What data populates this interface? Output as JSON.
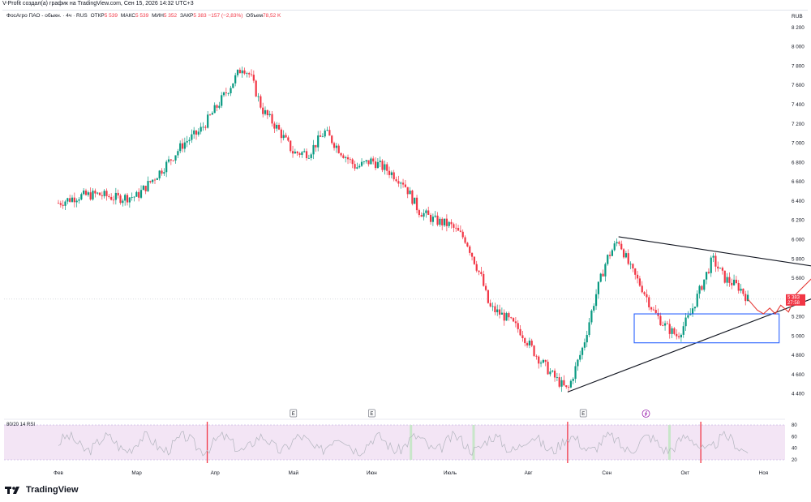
{
  "header": {
    "credit": "V-Profit создал(а) график на TradingView.com, Сен 15, 2026 14:32 UTC+3"
  },
  "legend": {
    "symbol": "ФосАгро ПАО - обыкн. · 4ч · RUS",
    "open_label": "ОТКР",
    "open_value": "5 539",
    "high_label": "МАКС",
    "high_value": "5 539",
    "low_label": "МИН",
    "low_value": "5 352",
    "close_label": "ЗАКР",
    "close_value": "5 383 −157 (−2,83%)",
    "volume_label": "Объем",
    "volume_value": "78,52 K"
  },
  "price_axis": {
    "currency": "RUB",
    "last_price": "5 383",
    "countdown": "27:58"
  },
  "rsi": {
    "label": "80/20 14 RSI"
  },
  "markers": {
    "earnings": "E",
    "lightning_icon": "lightning-icon"
  },
  "footer": {
    "brand": "TradingView"
  },
  "colors": {
    "up": "#089981",
    "down": "#f23645",
    "last_price_bg": "#f23645",
    "rsi_band": "#f3e5f5",
    "rsi_line": "#b2b5be",
    "box": "#2962ff",
    "triangle": "#131722",
    "projection": "#e53935"
  },
  "chart_data": {
    "type": "candlestick",
    "x_labels": [
      "Фев",
      "Мар",
      "Апр",
      "Май",
      "Июн",
      "Июль",
      "Авг",
      "Сен",
      "Окт",
      "Ноя"
    ],
    "y_ticks": [
      4400,
      4600,
      4800,
      5000,
      5200,
      5400,
      5600,
      5800,
      6000,
      6200,
      6400,
      6600,
      6800,
      7000,
      7200,
      7400,
      7600,
      7800,
      8000,
      8200
    ],
    "ylim": [
      4280,
      8300
    ],
    "price_path": [
      [
        0.0,
        6380
      ],
      [
        0.25,
        6450
      ],
      [
        0.5,
        6470
      ],
      [
        0.75,
        6430
      ],
      [
        1.0,
        6450
      ],
      [
        1.2,
        6620
      ],
      [
        1.4,
        6800
      ],
      [
        1.6,
        7000
      ],
      [
        1.8,
        7120
      ],
      [
        2.0,
        7350
      ],
      [
        2.2,
        7600
      ],
      [
        2.35,
        7800
      ],
      [
        2.45,
        7700
      ],
      [
        2.6,
        7350
      ],
      [
        2.8,
        7150
      ],
      [
        3.0,
        6900
      ],
      [
        3.2,
        6900
      ],
      [
        3.4,
        7120
      ],
      [
        3.6,
        6920
      ],
      [
        3.8,
        6750
      ],
      [
        4.0,
        6820
      ],
      [
        4.2,
        6720
      ],
      [
        4.4,
        6600
      ],
      [
        4.6,
        6300
      ],
      [
        4.8,
        6200
      ],
      [
        5.0,
        6150
      ],
      [
        5.2,
        6000
      ],
      [
        5.4,
        5600
      ],
      [
        5.5,
        5300
      ],
      [
        5.7,
        5200
      ],
      [
        5.9,
        5050
      ],
      [
        6.1,
        4800
      ],
      [
        6.3,
        4600
      ],
      [
        6.5,
        4430
      ],
      [
        6.7,
        4900
      ],
      [
        6.85,
        5400
      ],
      [
        7.0,
        5800
      ],
      [
        7.15,
        6000
      ],
      [
        7.3,
        5700
      ],
      [
        7.45,
        5500
      ],
      [
        7.6,
        5250
      ],
      [
        7.75,
        5100
      ],
      [
        7.9,
        5000
      ],
      [
        8.05,
        5200
      ],
      [
        8.2,
        5500
      ],
      [
        8.35,
        5800
      ],
      [
        8.5,
        5600
      ],
      [
        8.7,
        5500
      ],
      [
        8.8,
        5383
      ]
    ],
    "triangle_upper": [
      [
        7.15,
        6030
      ],
      [
        10.4,
        5630
      ]
    ],
    "triangle_lower": [
      [
        6.5,
        4420
      ],
      [
        10.4,
        5630
      ]
    ],
    "support_box": {
      "x": [
        7.35,
        9.2
      ],
      "y": [
        4930,
        5230
      ]
    },
    "projection_path": [
      [
        8.8,
        5383
      ],
      [
        8.92,
        5270
      ],
      [
        9.0,
        5230
      ],
      [
        9.08,
        5290
      ],
      [
        9.15,
        5230
      ],
      [
        9.22,
        5320
      ],
      [
        9.32,
        5250
      ],
      [
        9.42,
        5440
      ],
      [
        9.62,
        5600
      ],
      [
        9.78,
        6000
      ],
      [
        9.9,
        6200
      ],
      [
        9.98,
        6310
      ]
    ],
    "rsi_ticks": [
      20,
      40,
      60,
      80
    ],
    "rsi_bands": [
      20,
      80
    ],
    "rsi_breakouts_red": [
      1.9,
      6.5,
      8.2
    ],
    "rsi_breakouts_green": [
      4.5,
      5.3,
      7.8
    ]
  }
}
